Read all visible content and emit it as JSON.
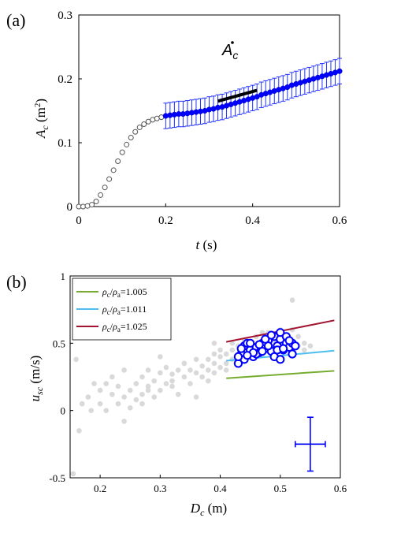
{
  "chart_data": [
    {
      "panel_label": "(a)",
      "type": "scatter",
      "xlabel_var": "t",
      "xlabel_unit": "(s)",
      "ylabel_var": "A",
      "ylabel_sub": "c",
      "ylabel_unit": "(m",
      "ylabel_unit_sup": "2",
      "ylabel_unit_close": ")",
      "xlim": [
        0,
        0.6
      ],
      "ylim": [
        0,
        0.3
      ],
      "xticks": [
        0,
        0.2,
        0.4,
        0.6
      ],
      "xtick_labels": [
        "0",
        "0.2",
        "0.4",
        "0.6"
      ],
      "yticks": [
        0,
        0.1,
        0.2,
        0.3
      ],
      "ytick_labels": [
        "0",
        "0.1",
        "0.2",
        "0.3"
      ],
      "annotation": {
        "var": "A",
        "sub": "c",
        "segment": [
          [
            0.32,
            0.165
          ],
          [
            0.41,
            0.182
          ]
        ]
      },
      "series": [
        {
          "marker": "open-circle-gray",
          "x": [
            0.0,
            0.01,
            0.02,
            0.03,
            0.04,
            0.05,
            0.06,
            0.07,
            0.08,
            0.09,
            0.1,
            0.11,
            0.12,
            0.13,
            0.14,
            0.15,
            0.16,
            0.17,
            0.18,
            0.19
          ],
          "y": [
            0.0,
            0.0,
            0.001,
            0.003,
            0.008,
            0.018,
            0.03,
            0.043,
            0.057,
            0.071,
            0.085,
            0.097,
            0.108,
            0.117,
            0.124,
            0.129,
            0.133,
            0.136,
            0.138,
            0.14
          ]
        },
        {
          "marker": "filled-circle-blue",
          "error": 0.02,
          "x": [
            0.2,
            0.21,
            0.22,
            0.23,
            0.24,
            0.25,
            0.26,
            0.27,
            0.28,
            0.29,
            0.3,
            0.31,
            0.32,
            0.33,
            0.34,
            0.35,
            0.36,
            0.37,
            0.38,
            0.39,
            0.4,
            0.41,
            0.42,
            0.43,
            0.44,
            0.45,
            0.46,
            0.47,
            0.48,
            0.49,
            0.5,
            0.51,
            0.52,
            0.53,
            0.54,
            0.55,
            0.56,
            0.57,
            0.58,
            0.59,
            0.6
          ],
          "y": [
            0.142,
            0.143,
            0.144,
            0.145,
            0.145,
            0.146,
            0.147,
            0.148,
            0.149,
            0.15,
            0.152,
            0.153,
            0.155,
            0.156,
            0.158,
            0.16,
            0.162,
            0.164,
            0.166,
            0.168,
            0.17,
            0.172,
            0.175,
            0.177,
            0.179,
            0.181,
            0.183,
            0.185,
            0.187,
            0.19,
            0.192,
            0.194,
            0.196,
            0.198,
            0.2,
            0.202,
            0.204,
            0.206,
            0.208,
            0.21,
            0.212
          ]
        }
      ]
    },
    {
      "panel_label": "(b)",
      "type": "scatter",
      "xlabel_var": "D",
      "xlabel_sub": "c",
      "xlabel_unit": "(m)",
      "ylabel_var": "u",
      "ylabel_sub": "sc",
      "ylabel_unit": "(m/s)",
      "xlim": [
        0.15,
        0.6
      ],
      "ylim": [
        -0.5,
        1
      ],
      "xticks": [
        0.2,
        0.3,
        0.4,
        0.5,
        0.6
      ],
      "xtick_labels": [
        "0.2",
        "0.3",
        "0.4",
        "0.5",
        "0.6"
      ],
      "yticks": [
        -0.5,
        0,
        0.5,
        1
      ],
      "ytick_labels": [
        "-0.5",
        "0",
        "0.5",
        "1"
      ],
      "legend_position": "top-left",
      "lines": [
        {
          "label": "ρc/ρa=1.005",
          "ratio": "1.005",
          "color": "#77ac30",
          "x": [
            0.41,
            0.59
          ],
          "y": [
            0.24,
            0.295
          ]
        },
        {
          "label": "ρc/ρa=1.011",
          "ratio": "1.011",
          "color": "#4dbeee",
          "x": [
            0.41,
            0.59
          ],
          "y": [
            0.37,
            0.445
          ]
        },
        {
          "label": "ρc/ρa=1.025",
          "ratio": "1.025",
          "color": "#a2142f",
          "x": [
            0.41,
            0.59
          ],
          "y": [
            0.51,
            0.67
          ]
        }
      ],
      "gray_points": {
        "x": [
          0.155,
          0.16,
          0.165,
          0.17,
          0.18,
          0.185,
          0.19,
          0.2,
          0.2,
          0.21,
          0.21,
          0.22,
          0.22,
          0.23,
          0.23,
          0.24,
          0.24,
          0.25,
          0.25,
          0.26,
          0.26,
          0.27,
          0.27,
          0.28,
          0.28,
          0.29,
          0.29,
          0.3,
          0.3,
          0.31,
          0.31,
          0.32,
          0.32,
          0.33,
          0.33,
          0.34,
          0.34,
          0.35,
          0.35,
          0.36,
          0.36,
          0.37,
          0.37,
          0.38,
          0.38,
          0.38,
          0.39,
          0.39,
          0.39,
          0.4,
          0.4,
          0.4,
          0.41,
          0.41,
          0.41,
          0.42,
          0.42,
          0.42,
          0.43,
          0.43,
          0.43,
          0.44,
          0.44,
          0.45,
          0.45,
          0.46,
          0.46,
          0.47,
          0.47,
          0.48,
          0.48,
          0.49,
          0.49,
          0.5,
          0.5,
          0.51,
          0.51,
          0.52,
          0.52,
          0.53,
          0.53,
          0.54,
          0.54,
          0.55,
          0.39,
          0.36,
          0.32,
          0.27,
          0.24,
          0.28,
          0.34,
          0.3,
          0.52,
          0.47
        ],
        "y": [
          -0.47,
          0.38,
          -0.15,
          0.05,
          0.1,
          0.0,
          0.2,
          0.15,
          0.05,
          0.0,
          0.2,
          0.12,
          0.25,
          0.05,
          0.18,
          0.1,
          0.3,
          0.15,
          0.02,
          0.2,
          0.08,
          0.25,
          0.12,
          0.18,
          0.3,
          0.1,
          0.22,
          0.15,
          0.28,
          0.2,
          0.32,
          0.18,
          0.27,
          0.12,
          0.3,
          0.25,
          0.35,
          0.2,
          0.3,
          0.28,
          0.38,
          0.25,
          0.33,
          0.3,
          0.38,
          0.22,
          0.35,
          0.42,
          0.28,
          0.32,
          0.4,
          0.45,
          0.35,
          0.42,
          0.3,
          0.38,
          0.45,
          0.5,
          0.4,
          0.48,
          0.35,
          0.42,
          0.52,
          0.4,
          0.47,
          0.44,
          0.55,
          0.42,
          0.5,
          0.48,
          0.58,
          0.45,
          0.52,
          0.48,
          0.6,
          0.5,
          0.55,
          0.52,
          0.82,
          0.48,
          0.55,
          0.5,
          0.45,
          0.48,
          0.5,
          0.1,
          0.22,
          0.05,
          -0.08,
          0.15,
          0.35,
          0.4,
          0.6,
          0.58
        ]
      },
      "blue_points": {
        "x": [
          0.43,
          0.435,
          0.44,
          0.445,
          0.45,
          0.455,
          0.46,
          0.465,
          0.47,
          0.475,
          0.48,
          0.485,
          0.49,
          0.495,
          0.5,
          0.505,
          0.51,
          0.515,
          0.52,
          0.44,
          0.45,
          0.46,
          0.47,
          0.48,
          0.49,
          0.5,
          0.51,
          0.52,
          0.435,
          0.455,
          0.475,
          0.495,
          0.515,
          0.445,
          0.465,
          0.485,
          0.505,
          0.525,
          0.43,
          0.5
        ],
        "y": [
          0.35,
          0.42,
          0.48,
          0.5,
          0.45,
          0.4,
          0.47,
          0.43,
          0.5,
          0.46,
          0.52,
          0.44,
          0.55,
          0.48,
          0.53,
          0.45,
          0.5,
          0.47,
          0.42,
          0.38,
          0.5,
          0.42,
          0.44,
          0.48,
          0.4,
          0.58,
          0.55,
          0.5,
          0.46,
          0.43,
          0.53,
          0.45,
          0.52,
          0.41,
          0.49,
          0.56,
          0.46,
          0.48,
          0.4,
          0.38
        ]
      },
      "error_cross": {
        "x": 0.55,
        "y": -0.25,
        "dx": 0.025,
        "dy": 0.2
      }
    }
  ]
}
